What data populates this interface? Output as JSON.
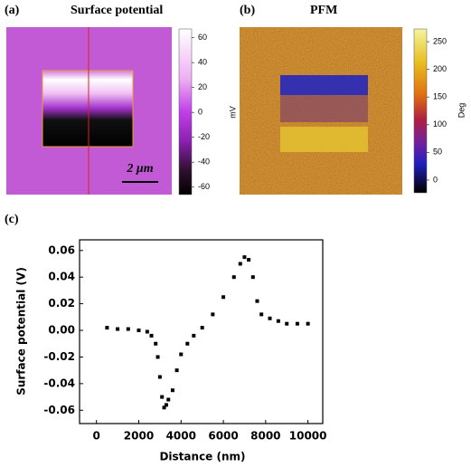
{
  "panels": [
    {
      "label": "(a)",
      "title": "Surface potential",
      "unit": "mV",
      "scale_bar": "2 μm",
      "clim": [
        -66,
        67
      ],
      "ticks": [
        60,
        40,
        20,
        0,
        -20,
        -40,
        -60
      ]
    },
    {
      "label": "(b)",
      "title": "PFM",
      "unit": "Deg",
      "clim": [
        -23,
        273
      ],
      "ticks": [
        250,
        200,
        150,
        100,
        50,
        0
      ]
    }
  ],
  "chart_data": {
    "type": "scatter",
    "label": "(c)",
    "xlabel": "Distance (nm)",
    "ylabel": "Surface potential (V)",
    "x": [
      500,
      1000,
      1500,
      2000,
      2400,
      2600,
      2800,
      2900,
      3000,
      3100,
      3200,
      3300,
      3400,
      3600,
      3800,
      4000,
      4300,
      4600,
      5000,
      5500,
      6000,
      6500,
      6800,
      7000,
      7200,
      7400,
      7600,
      7800,
      8200,
      8600,
      9000,
      9500,
      10000
    ],
    "values": [
      0.002,
      0.001,
      0.001,
      0.0,
      -0.001,
      -0.004,
      -0.01,
      -0.02,
      -0.035,
      -0.05,
      -0.058,
      -0.056,
      -0.052,
      -0.045,
      -0.03,
      -0.018,
      -0.01,
      -0.004,
      0.002,
      0.012,
      0.025,
      0.04,
      0.05,
      0.055,
      0.053,
      0.04,
      0.022,
      0.012,
      0.009,
      0.007,
      0.005,
      0.005,
      0.005
    ],
    "color": "#000000",
    "xlim": [
      -800,
      10700
    ],
    "ylim": [
      -0.07,
      0.068
    ],
    "xticks": [
      0,
      2000,
      4000,
      6000,
      8000,
      10000
    ],
    "yticks": [
      0.06,
      0.04,
      0.02,
      {
        "value": 0,
        "label": "0.00"
      },
      -0.02,
      -0.04,
      -0.06
    ]
  }
}
